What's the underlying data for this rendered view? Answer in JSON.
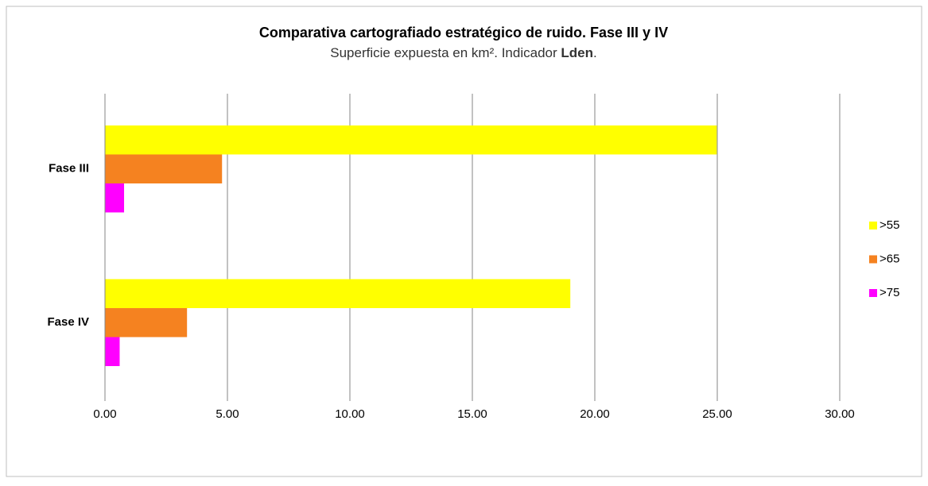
{
  "chart_data": {
    "type": "hbar",
    "title": "Comparativa  cartografiado estratégico de ruido. Fase III y IV",
    "subtitle": "Superficie expuesta en km².  Indicador Lden.",
    "subtitle_emphasis": "Lden",
    "categories": [
      "Fase III",
      "Fase IV"
    ],
    "series": [
      {
        "name": ">55",
        "color": "#ffff00",
        "values": [
          24.98,
          19.0
        ]
      },
      {
        "name": ">65",
        "color": "#f58220",
        "values": [
          4.78,
          3.35
        ]
      },
      {
        "name": ">75",
        "color": "#ff00ff",
        "values": [
          0.78,
          0.6
        ]
      }
    ],
    "xlim": [
      0,
      30
    ],
    "xticks": [
      {
        "value": 0,
        "label": "0.00"
      },
      {
        "value": 5,
        "label": "5.00"
      },
      {
        "value": 10,
        "label": "10.00"
      },
      {
        "value": 15,
        "label": "15.00"
      },
      {
        "value": 20,
        "label": "20.00"
      },
      {
        "value": 25,
        "label": "25.00"
      },
      {
        "value": 30,
        "label": "30.00"
      }
    ],
    "grid": true,
    "legend": "right"
  }
}
